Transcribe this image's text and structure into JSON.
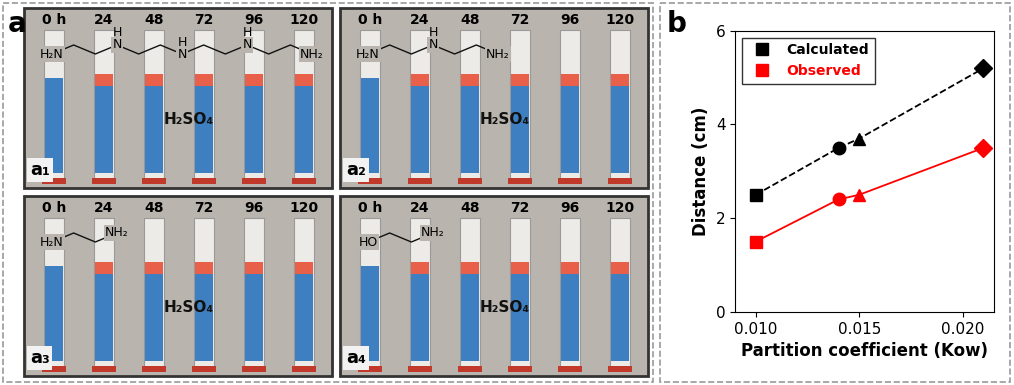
{
  "panel_a": {
    "label": "a",
    "subpanels": [
      {
        "label": "a₁",
        "times": [
          "0 h",
          "24",
          "48",
          "72",
          "96",
          "120"
        ],
        "acid": "H₂SO₄",
        "molecule": {
          "atoms": [
            "H₂N",
            "N",
            "N",
            "N",
            "NH₂"
          ],
          "hydrogen": "H"
        }
      },
      {
        "label": "a₂",
        "times": [
          "0 h",
          "24",
          "48",
          "72",
          "96",
          "120"
        ],
        "acid": "H₂SO₄",
        "molecule": {
          "atoms": [
            "H₂N",
            "N",
            "NH₂"
          ],
          "hydrogen": "H"
        }
      },
      {
        "label": "a₃",
        "times": [
          "0 h",
          "24",
          "48",
          "72",
          "96",
          "120"
        ],
        "acid": "H₂SO₄",
        "molecule": {
          "atoms": [
            "H₂N",
            "NH₂"
          ]
        }
      },
      {
        "label": "a₄",
        "times": [
          "0 h",
          "24",
          "48",
          "72",
          "96",
          "120"
        ],
        "acid": "H₂SO₄",
        "molecule": {
          "atoms": [
            "HO",
            "NH₂"
          ]
        }
      }
    ]
  },
  "panel_b_label": "b",
  "chart_data": {
    "type": "line",
    "x_label": "Partition coefficient (Kow)",
    "y_label": "Distance (cm)",
    "x": [
      0.01,
      0.014,
      0.015,
      0.021
    ],
    "series": [
      {
        "name": "Calculated",
        "color": "#000000",
        "line_style": "dashed",
        "marker": [
          "square",
          "circle",
          "triangle",
          "diamond"
        ],
        "values": [
          2.5,
          3.5,
          3.7,
          5.2
        ]
      },
      {
        "name": "Observed",
        "color": "#ff0000",
        "line_style": "solid",
        "marker": [
          "square",
          "circle",
          "triangle",
          "diamond"
        ],
        "values": [
          1.5,
          2.4,
          2.5,
          3.5
        ]
      }
    ],
    "xlim": [
      0.009,
      0.0215
    ],
    "xticks": [
      {
        "value": 0.01,
        "label": "0.010"
      },
      {
        "value": 0.015,
        "label": "0.015"
      },
      {
        "value": 0.02,
        "label": "0.020"
      }
    ],
    "ylim": [
      0,
      6
    ],
    "yticks": [
      0,
      2,
      4,
      6
    ],
    "legend": "upper left"
  }
}
